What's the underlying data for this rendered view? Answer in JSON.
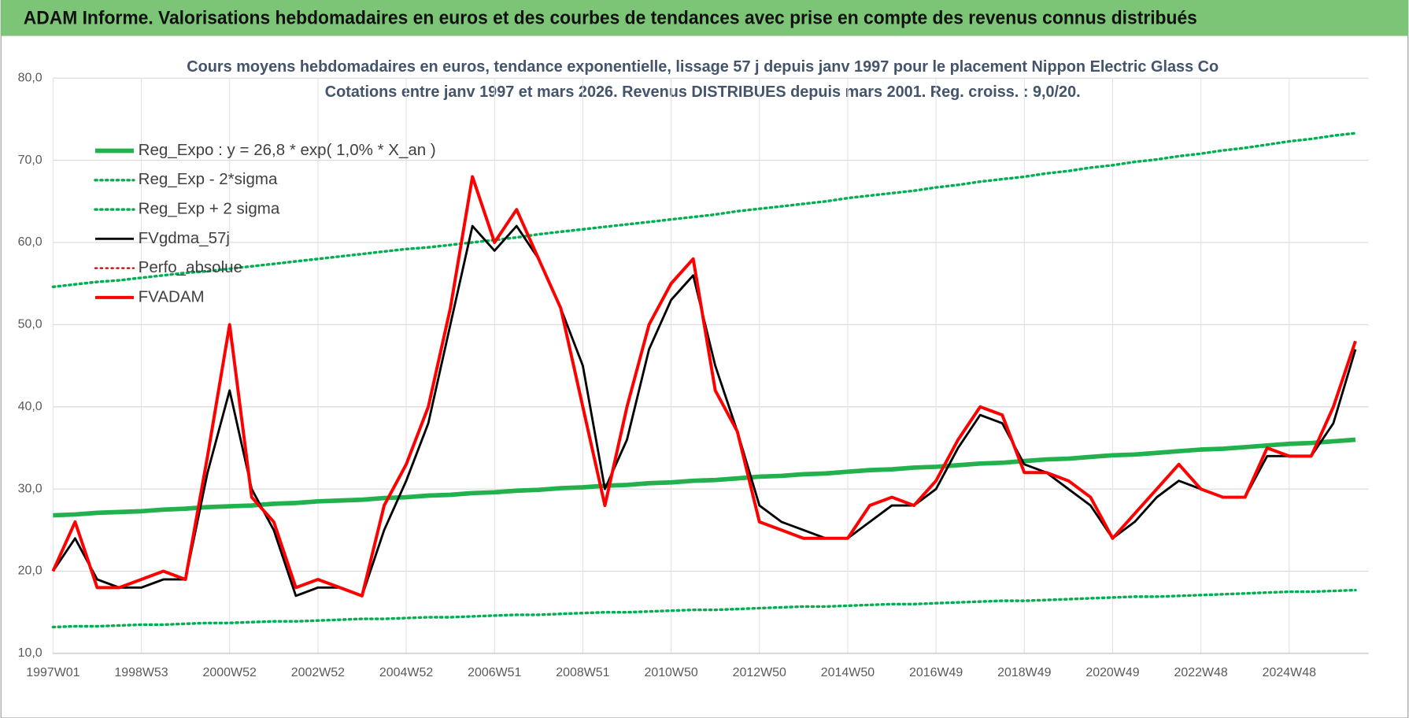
{
  "header": {
    "title": "ADAM Informe. Valorisations hebdomadaires en euros et des courbes de tendances avec prise en compte des revenus connus distribués"
  },
  "chart_data": {
    "type": "line",
    "title": "Cours moyens hebdomadaires en euros, tendance exponentielle, lissage 57 j depuis janv 1997 pour le placement Nippon Electric Glass Co",
    "subtitle": "Cotations entre janv 1997 et mars 2026. Revenus DISTRIBUES depuis mars 2001. Reg. croiss. : 9,0/20.",
    "categories": [
      "1997W01",
      null,
      null,
      null,
      "1998W53",
      null,
      null,
      null,
      "2000W52",
      null,
      null,
      null,
      "2002W52",
      null,
      null,
      null,
      "2004W52",
      null,
      null,
      null,
      "2006W51",
      null,
      null,
      null,
      "2008W51",
      null,
      null,
      null,
      "2010W50",
      null,
      null,
      null,
      "2012W50",
      null,
      null,
      null,
      "2014W50",
      null,
      null,
      null,
      "2016W49",
      null,
      null,
      null,
      "2018W49",
      null,
      null,
      null,
      "2020W49",
      null,
      null,
      null,
      "2022W48",
      null,
      null,
      null,
      "2024W48",
      null,
      null,
      null
    ],
    "ylim": [
      10,
      80
    ],
    "yticks": [
      {
        "value": 10,
        "label": "10,0"
      },
      {
        "value": 20,
        "label": "20,0"
      },
      {
        "value": 30,
        "label": "30,0"
      },
      {
        "value": 40,
        "label": "40,0"
      },
      {
        "value": 50,
        "label": "50,0"
      },
      {
        "value": 60,
        "label": "60,0"
      },
      {
        "value": 70,
        "label": "70,0"
      },
      {
        "value": 80,
        "label": "80,0"
      }
    ],
    "grid": true,
    "legend": "upper-left",
    "series": [
      {
        "name": "Reg_Expo : y = 26,8 * exp( 1,0% *  X_an )",
        "color": "#22b14c",
        "style": "solid",
        "width": 5,
        "values": [
          26.8,
          26.9,
          27.1,
          27.2,
          27.3,
          27.5,
          27.6,
          27.8,
          27.9,
          28.0,
          28.2,
          28.3,
          28.5,
          28.6,
          28.7,
          28.9,
          29.0,
          29.2,
          29.3,
          29.5,
          29.6,
          29.8,
          29.9,
          30.1,
          30.2,
          30.4,
          30.5,
          30.7,
          30.8,
          31.0,
          31.1,
          31.3,
          31.5,
          31.6,
          31.8,
          31.9,
          32.1,
          32.3,
          32.4,
          32.6,
          32.7,
          32.9,
          33.1,
          33.2,
          33.4,
          33.6,
          33.7,
          33.9,
          34.1,
          34.2,
          34.4,
          34.6,
          34.8,
          34.9,
          35.1,
          35.3,
          35.5,
          35.6,
          35.8,
          36.0
        ]
      },
      {
        "name": "Reg_Exp - 2*sigma",
        "color": "#00b050",
        "style": "dotted",
        "width": 3,
        "values": [
          13.2,
          13.3,
          13.3,
          13.4,
          13.5,
          13.5,
          13.6,
          13.7,
          13.7,
          13.8,
          13.9,
          13.9,
          14.0,
          14.1,
          14.2,
          14.2,
          14.3,
          14.4,
          14.4,
          14.5,
          14.6,
          14.7,
          14.7,
          14.8,
          14.9,
          15.0,
          15.0,
          15.1,
          15.2,
          15.3,
          15.3,
          15.4,
          15.5,
          15.6,
          15.7,
          15.7,
          15.8,
          15.9,
          16.0,
          16.0,
          16.1,
          16.2,
          16.3,
          16.4,
          16.4,
          16.5,
          16.6,
          16.7,
          16.8,
          16.9,
          16.9,
          17.0,
          17.1,
          17.2,
          17.3,
          17.4,
          17.5,
          17.5,
          17.6,
          17.7
        ]
      },
      {
        "name": "Reg_Exp + 2 sigma",
        "color": "#00b050",
        "style": "dotted",
        "width": 3,
        "values": [
          54.6,
          54.9,
          55.2,
          55.4,
          55.7,
          56.0,
          56.3,
          56.5,
          56.8,
          57.1,
          57.4,
          57.7,
          58.0,
          58.3,
          58.6,
          58.9,
          59.2,
          59.4,
          59.7,
          60.0,
          60.3,
          60.6,
          61.0,
          61.3,
          61.6,
          61.9,
          62.2,
          62.5,
          62.8,
          63.1,
          63.4,
          63.8,
          64.1,
          64.4,
          64.7,
          65.0,
          65.4,
          65.7,
          66.0,
          66.3,
          66.7,
          67.0,
          67.4,
          67.7,
          68.0,
          68.4,
          68.7,
          69.1,
          69.4,
          69.8,
          70.1,
          70.5,
          70.8,
          71.2,
          71.5,
          71.9,
          72.3,
          72.6,
          73.0,
          73.3
        ]
      },
      {
        "name": "FVgdma_57j",
        "color": "#000000",
        "style": "solid",
        "width": 2.5,
        "values": [
          20,
          24,
          19,
          18,
          18,
          19,
          19,
          32,
          42,
          30,
          25,
          17,
          18,
          18,
          17,
          25,
          31,
          38,
          50,
          62,
          59,
          62,
          58,
          52,
          45,
          30,
          36,
          47,
          53,
          56,
          45,
          37,
          28,
          26,
          25,
          24,
          24,
          26,
          28,
          28,
          30,
          35,
          39,
          38,
          33,
          32,
          30,
          28,
          24,
          26,
          29,
          31,
          30,
          29,
          29,
          34,
          34,
          34,
          38,
          47
        ]
      },
      {
        "name": "Perfo_absolue",
        "color": "#c00000",
        "style": "dotted",
        "width": 2,
        "values": [
          null,
          null,
          null,
          null,
          null,
          null,
          null,
          null,
          null,
          null,
          null,
          null,
          null,
          null,
          null,
          null,
          null,
          null,
          null,
          null,
          null,
          null,
          null,
          null,
          null,
          null,
          null,
          null,
          null,
          null,
          null,
          null,
          null,
          null,
          null,
          null,
          null,
          null,
          null,
          null,
          null,
          null,
          null,
          null,
          null,
          null,
          null,
          null,
          null,
          null,
          null,
          null,
          null,
          null,
          null,
          null,
          null,
          null,
          null,
          null
        ]
      },
      {
        "name": "FVADAM",
        "color": "#ff0000",
        "style": "solid",
        "width": 3.5,
        "values": [
          20,
          26,
          18,
          18,
          19,
          20,
          19,
          34,
          50,
          29,
          26,
          18,
          19,
          18,
          17,
          28,
          33,
          40,
          52,
          68,
          60,
          64,
          58,
          52,
          40,
          28,
          40,
          50,
          55,
          58,
          42,
          37,
          26,
          25,
          24,
          24,
          24,
          28,
          29,
          28,
          31,
          36,
          40,
          39,
          32,
          32,
          31,
          29,
          24,
          27,
          30,
          33,
          30,
          29,
          29,
          35,
          34,
          34,
          40,
          48
        ]
      }
    ]
  }
}
